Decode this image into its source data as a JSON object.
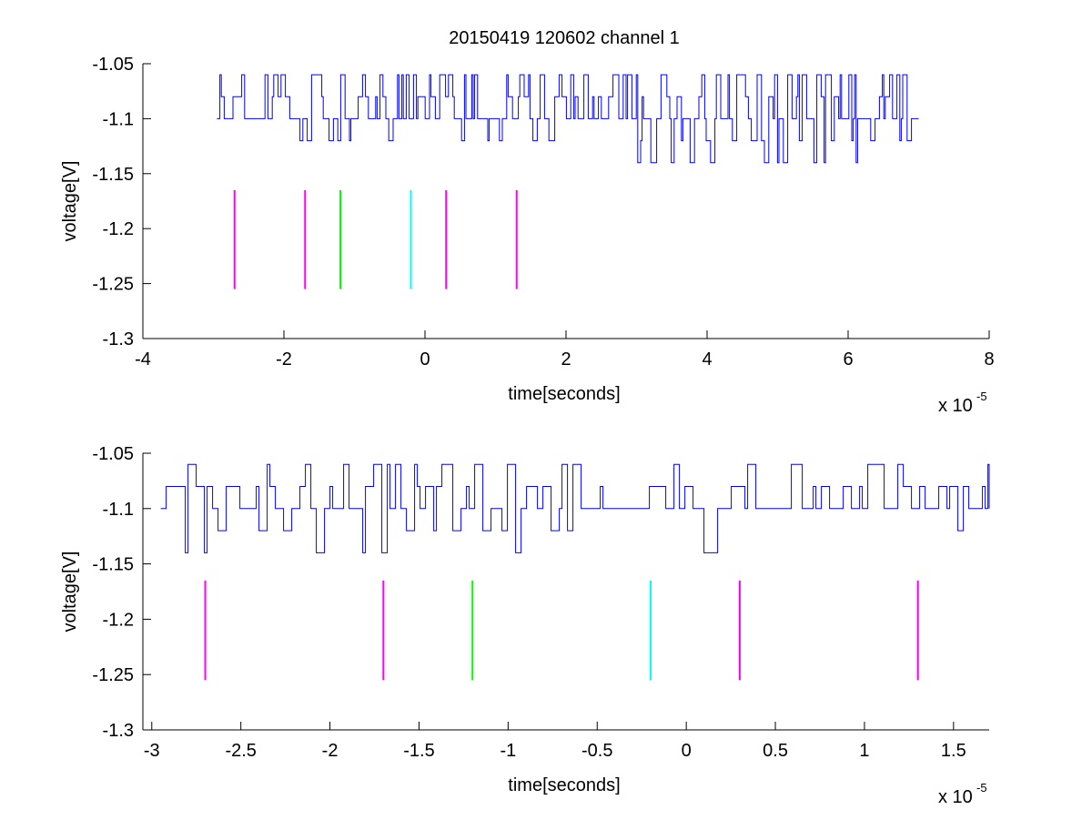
{
  "figure": {
    "title": "20150419 120602 channel 1"
  },
  "chart_data": [
    {
      "type": "line",
      "title": "20150419 120602 channel 1",
      "xlabel": "time[seconds]",
      "ylabel": "voltage[V]",
      "x_multiplier_label": "x 10",
      "x_multiplier_exponent": "-5",
      "xlim": [
        -4,
        8
      ],
      "ylim": [
        -1.3,
        -1.05
      ],
      "x_ticks": [
        -4,
        -2,
        0,
        2,
        4,
        6,
        8
      ],
      "x_tick_labels": [
        "-4",
        "-2",
        "0",
        "2",
        "4",
        "6",
        "8"
      ],
      "y_ticks": [
        -1.3,
        -1.25,
        -1.2,
        -1.15,
        -1.1,
        -1.05
      ],
      "y_tick_labels": [
        "-1.3",
        "-1.25",
        "-1.2",
        "-1.15",
        "-1.1",
        "-1.05"
      ],
      "grid": false,
      "series": [
        {
          "color": "#0000ff",
          "x_range": [
            -2.95,
            7.0
          ],
          "levels": [
            -1.06,
            -1.08,
            -1.1,
            -1.12,
            -1.14
          ],
          "baseline": -1.1
        }
      ],
      "markers": [
        {
          "x": -2.7,
          "y_top": -1.165,
          "y_bottom": -1.255,
          "color": "#ff00ff"
        },
        {
          "x": -1.7,
          "y_top": -1.165,
          "y_bottom": -1.255,
          "color": "#ff00ff"
        },
        {
          "x": -1.2,
          "y_top": -1.165,
          "y_bottom": -1.255,
          "color": "#00ff00"
        },
        {
          "x": -0.2,
          "y_top": -1.165,
          "y_bottom": -1.255,
          "color": "#00ffff"
        },
        {
          "x": 0.3,
          "y_top": -1.165,
          "y_bottom": -1.255,
          "color": "#ff00ff"
        },
        {
          "x": 1.3,
          "y_top": -1.165,
          "y_bottom": -1.255,
          "color": "#ff00ff"
        }
      ]
    },
    {
      "type": "line",
      "title": "",
      "xlabel": "time[seconds]",
      "ylabel": "voltage[V]",
      "x_multiplier_label": "x 10",
      "x_multiplier_exponent": "-5",
      "xlim": [
        -3.05,
        1.7
      ],
      "ylim": [
        -1.3,
        -1.05
      ],
      "x_ticks": [
        -3,
        -2.5,
        -2,
        -1.5,
        -1,
        -0.5,
        0,
        0.5,
        1,
        1.5
      ],
      "x_tick_labels": [
        "-3",
        "-2.5",
        "-2",
        "-1.5",
        "-1",
        "-0.5",
        "0",
        "0.5",
        "1",
        "1.5"
      ],
      "y_ticks": [
        -1.3,
        -1.25,
        -1.2,
        -1.15,
        -1.1,
        -1.05
      ],
      "y_tick_labels": [
        "-1.3",
        "-1.25",
        "-1.2",
        "-1.15",
        "-1.1",
        "-1.05"
      ],
      "grid": false,
      "series": [
        {
          "color": "#0000ff",
          "x_range": [
            -2.95,
            1.7
          ],
          "levels": [
            -1.06,
            -1.08,
            -1.1,
            -1.12,
            -1.14
          ],
          "baseline": -1.1
        }
      ],
      "markers": [
        {
          "x": -2.7,
          "y_top": -1.165,
          "y_bottom": -1.255,
          "color": "#ff00ff"
        },
        {
          "x": -1.7,
          "y_top": -1.165,
          "y_bottom": -1.255,
          "color": "#ff00ff"
        },
        {
          "x": -1.2,
          "y_top": -1.165,
          "y_bottom": -1.255,
          "color": "#00ff00"
        },
        {
          "x": -0.2,
          "y_top": -1.165,
          "y_bottom": -1.255,
          "color": "#00ffff"
        },
        {
          "x": 0.3,
          "y_top": -1.165,
          "y_bottom": -1.255,
          "color": "#ff00ff"
        },
        {
          "x": 1.3,
          "y_top": -1.165,
          "y_bottom": -1.255,
          "color": "#ff00ff"
        }
      ]
    }
  ]
}
